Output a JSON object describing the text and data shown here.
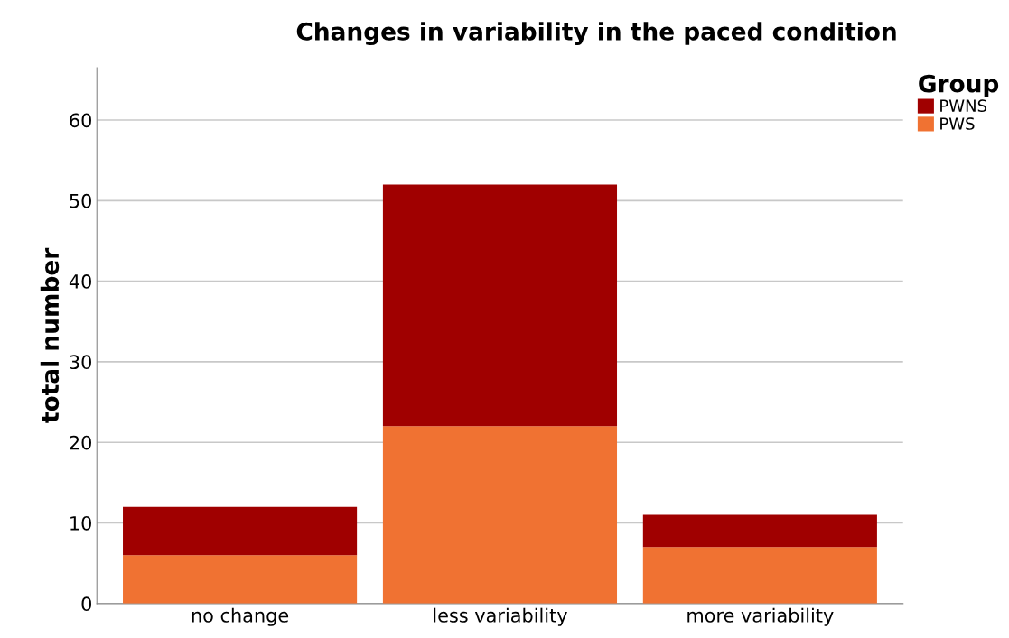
{
  "chart_data": {
    "type": "bar",
    "title": "Changes in variability in the paced condition",
    "ylabel": "total number",
    "legend_title": "Group",
    "categories": [
      "no change",
      "less variability",
      "more variability"
    ],
    "series": [
      {
        "name": "PWS",
        "color": "#f07232",
        "values": [
          6,
          22,
          7
        ]
      },
      {
        "name": "PWNS",
        "color": "#a00000",
        "values": [
          6,
          30,
          4
        ]
      }
    ],
    "stacked": true,
    "ylim": [
      0,
      66.5
    ],
    "yticks": [
      0,
      10,
      20,
      30,
      40,
      50,
      60
    ],
    "grid": "y",
    "legend": "top right"
  }
}
